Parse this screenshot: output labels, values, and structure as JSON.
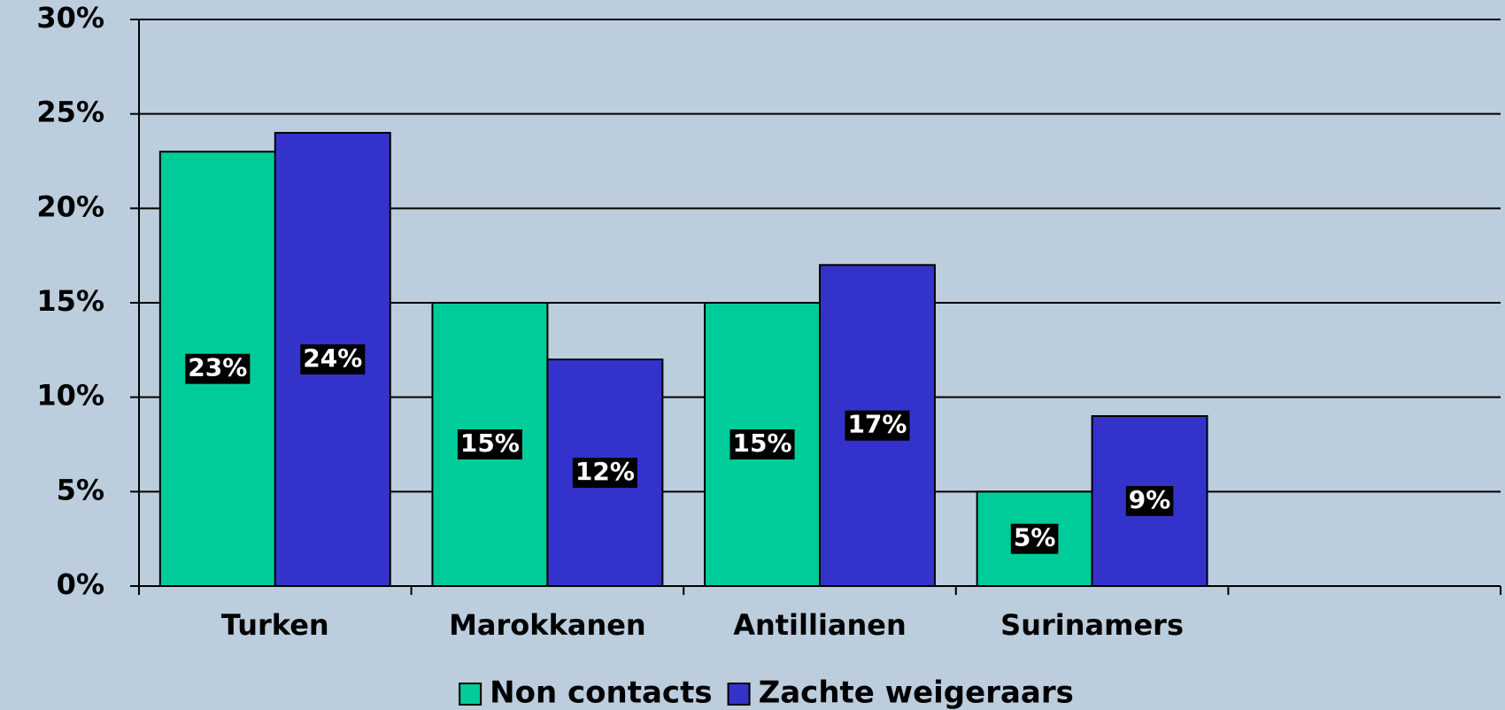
{
  "chart_data": {
    "type": "bar",
    "categories": [
      "Turken",
      "Marokkanen",
      "Antillianen",
      "Surinamers",
      null
    ],
    "series": [
      {
        "name": "Non contacts",
        "color": "#00cc99",
        "values": [
          23,
          15,
          15,
          5,
          null
        ],
        "value_labels": [
          "23%",
          "15%",
          "15%",
          "5%",
          null
        ]
      },
      {
        "name": "Zachte weigeraars",
        "color": "#3333cc",
        "values": [
          24,
          12,
          17,
          9,
          null
        ],
        "value_labels": [
          "24%",
          "12%",
          "17%",
          "9%",
          null
        ]
      }
    ],
    "ylim": [
      0,
      30
    ],
    "yticks": [
      {
        "value": 0,
        "label": "0%"
      },
      {
        "value": 5,
        "label": "5%"
      },
      {
        "value": 10,
        "label": "10%"
      },
      {
        "value": 15,
        "label": "15%"
      },
      {
        "value": 20,
        "label": "20%"
      },
      {
        "value": 25,
        "label": "25%"
      },
      {
        "value": 30,
        "label": "30%"
      }
    ],
    "grid": true,
    "legend": "bottom"
  }
}
